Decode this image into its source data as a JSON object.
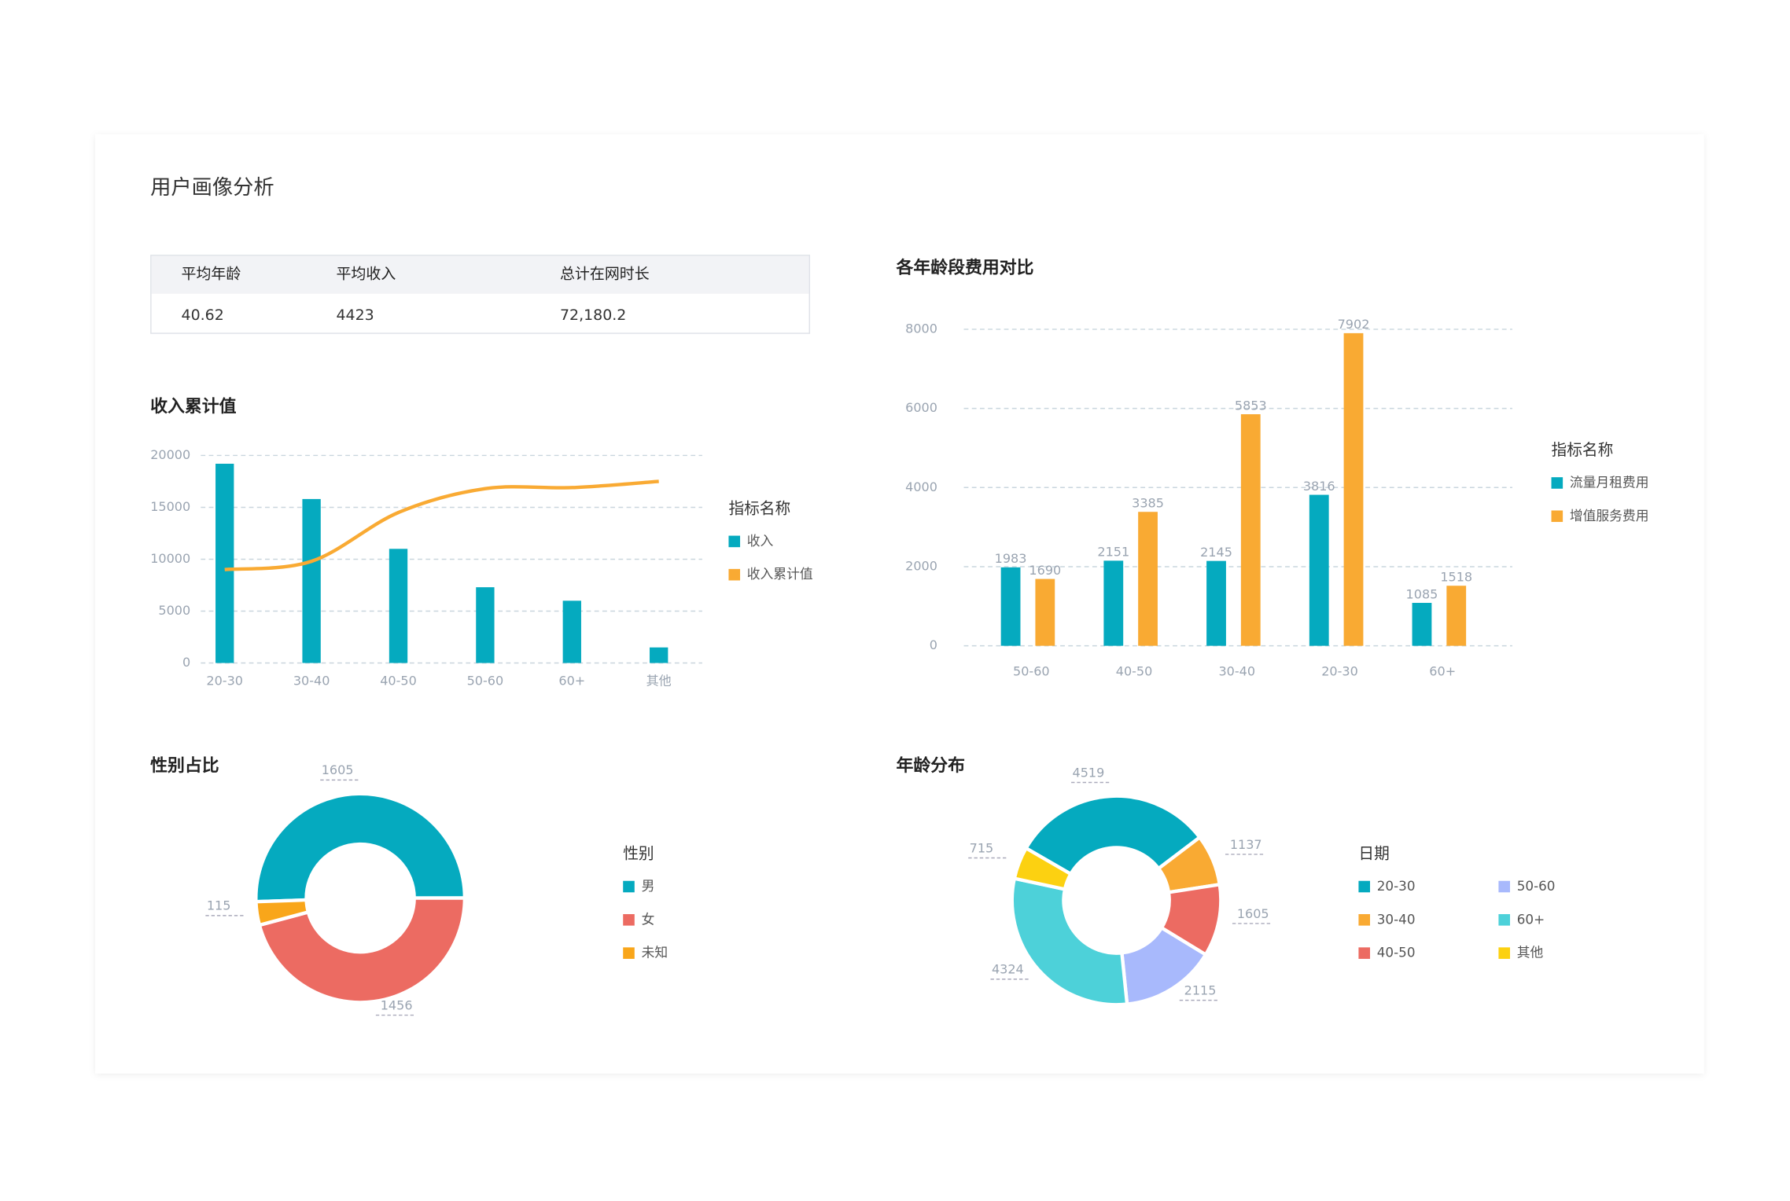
{
  "title": "用户画像分析",
  "table": {
    "headers": [
      "平均年龄",
      "平均收入",
      "总计在网时长"
    ],
    "rows": [
      [
        "40.62",
        "4423",
        "72,180.2"
      ]
    ]
  },
  "chart_data": [
    {
      "type": "combo",
      "title": "收入累计值",
      "categories": [
        "20-30",
        "30-40",
        "40-50",
        "50-60",
        "60+",
        "其他"
      ],
      "series": [
        {
          "name": "收入",
          "type": "bar",
          "color": "#05aabf",
          "values": [
            19200,
            15800,
            11000,
            7300,
            6000,
            1500
          ]
        },
        {
          "name": "收入累计值",
          "type": "line",
          "color": "#f9aa33",
          "values": [
            9000,
            9800,
            14500,
            16800,
            16900,
            17500
          ]
        }
      ],
      "ylim": [
        0,
        20000
      ],
      "yticks": [
        0,
        5000,
        10000,
        15000,
        20000
      ],
      "grid": true,
      "legend_title": "指标名称"
    },
    {
      "type": "bar",
      "title": "各年龄段费用对比",
      "categories": [
        "50-60",
        "40-50",
        "30-40",
        "20-30",
        "60+"
      ],
      "series": [
        {
          "name": "流量月租费用",
          "color": "#05aabf",
          "values": [
            1983,
            2151,
            2145,
            3816,
            1085
          ]
        },
        {
          "name": "增值服务费用",
          "color": "#f9aa33",
          "values": [
            1690,
            3385,
            5853,
            7902,
            1518
          ]
        }
      ],
      "ylim": [
        0,
        8000
      ],
      "yticks": [
        0,
        2000,
        4000,
        6000,
        8000
      ],
      "grid": true,
      "legend_title": "指标名称"
    },
    {
      "type": "donut",
      "title": "性别占比",
      "legend_title": "性别",
      "categories": [
        "男",
        "女",
        "未知"
      ],
      "values": [
        1605,
        1456,
        115
      ],
      "colors": [
        "#05aabf",
        "#ec6b62",
        "#f9a61a"
      ]
    },
    {
      "type": "donut",
      "title": "年龄分布",
      "legend_title": "日期",
      "categories": [
        "20-30",
        "30-40",
        "40-50",
        "50-60",
        "60+",
        "其他"
      ],
      "values": [
        4519,
        1137,
        1605,
        2115,
        4324,
        715
      ],
      "colors": [
        "#05aabf",
        "#f9aa33",
        "#ec6b62",
        "#a8b9fc",
        "#4dd1d9",
        "#fcd111"
      ]
    }
  ]
}
